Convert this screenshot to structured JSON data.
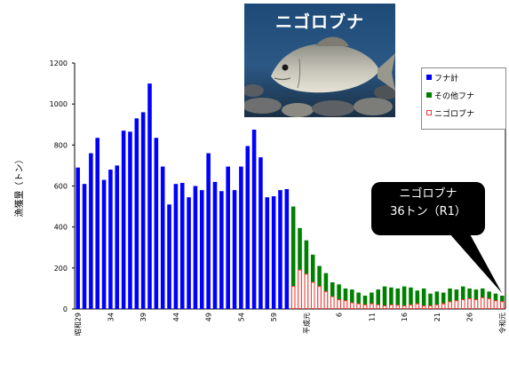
{
  "photo": {
    "title": "ニゴロブナ"
  },
  "legend": [
    {
      "label": "フナ計",
      "color": "#0000ff",
      "style": "solid"
    },
    {
      "label": "その他フナ",
      "color": "#008000",
      "style": "solid"
    },
    {
      "label": "ニゴロブナ",
      "color": "#ff3333",
      "style": "outline"
    }
  ],
  "callout": {
    "line1": "ニゴロブナ",
    "line2": "36トン（R1）"
  },
  "chart_data": {
    "type": "bar",
    "ylabel": "漁獲量（トン）",
    "ylim": [
      0,
      1200
    ],
    "yticks": [
      0,
      200,
      400,
      600,
      800,
      1000,
      1200
    ],
    "xtick_labels": [
      {
        "index": 0,
        "label": "昭和29"
      },
      {
        "index": 5,
        "label": "34"
      },
      {
        "index": 10,
        "label": "39"
      },
      {
        "index": 15,
        "label": "44"
      },
      {
        "index": 20,
        "label": "49"
      },
      {
        "index": 25,
        "label": "54"
      },
      {
        "index": 30,
        "label": "59"
      },
      {
        "index": 35,
        "label": "平成元"
      },
      {
        "index": 40,
        "label": "6"
      },
      {
        "index": 45,
        "label": "11"
      },
      {
        "index": 50,
        "label": "16"
      },
      {
        "index": 55,
        "label": "21"
      },
      {
        "index": 60,
        "label": "26"
      },
      {
        "index": 65,
        "label": "令和元"
      }
    ],
    "series": [
      {
        "name": "フナ計",
        "values": [
          690,
          610,
          760,
          835,
          630,
          680,
          700,
          870,
          865,
          930,
          960,
          1100,
          835,
          695,
          510,
          610,
          615,
          545,
          600,
          580,
          760,
          620,
          575,
          695,
          580,
          695,
          795,
          875,
          740,
          545,
          550,
          580,
          585,
          0,
          0,
          0,
          0,
          0,
          0,
          0,
          0,
          0,
          0,
          0,
          0,
          0,
          0,
          0,
          0,
          0,
          0,
          0,
          0,
          0,
          0,
          0,
          0,
          0,
          0,
          0,
          0,
          0,
          0,
          0,
          0,
          0
        ]
      },
      {
        "name": "その他フナ",
        "values": [
          0,
          0,
          0,
          0,
          0,
          0,
          0,
          0,
          0,
          0,
          0,
          0,
          0,
          0,
          0,
          0,
          0,
          0,
          0,
          0,
          0,
          0,
          0,
          0,
          0,
          0,
          0,
          0,
          0,
          0,
          0,
          0,
          0,
          500,
          395,
          335,
          265,
          210,
          175,
          130,
          120,
          100,
          95,
          80,
          65,
          80,
          95,
          110,
          105,
          100,
          110,
          105,
          90,
          100,
          75,
          85,
          80,
          100,
          95,
          110,
          100,
          95,
          100,
          85,
          75,
          65
        ]
      },
      {
        "name": "ニゴロブナ",
        "values": [
          0,
          0,
          0,
          0,
          0,
          0,
          0,
          0,
          0,
          0,
          0,
          0,
          0,
          0,
          0,
          0,
          0,
          0,
          0,
          0,
          0,
          0,
          0,
          0,
          0,
          0,
          0,
          0,
          0,
          0,
          0,
          0,
          0,
          110,
          190,
          170,
          130,
          110,
          85,
          60,
          45,
          40,
          30,
          25,
          20,
          25,
          20,
          15,
          20,
          18,
          15,
          20,
          25,
          15,
          15,
          20,
          25,
          35,
          40,
          45,
          50,
          45,
          55,
          50,
          40,
          36
        ]
      }
    ]
  }
}
